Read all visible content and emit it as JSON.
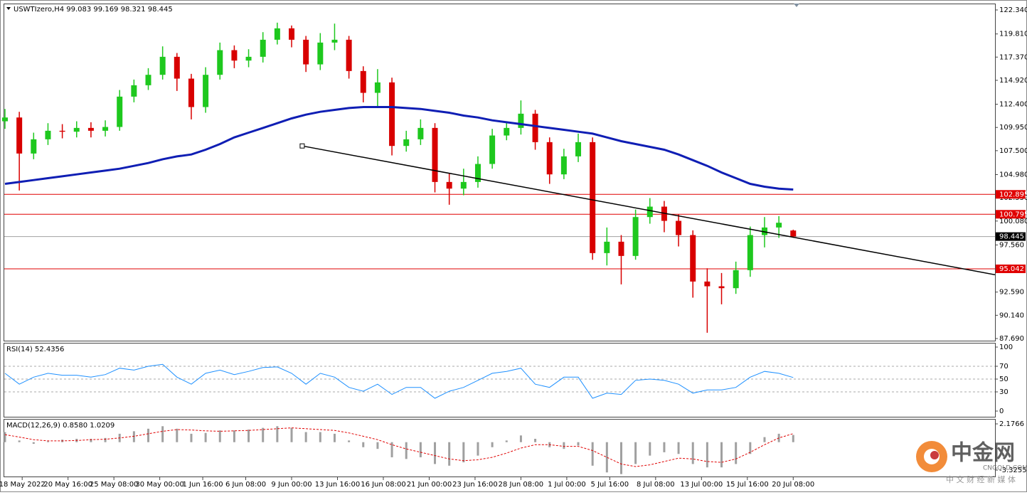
{
  "chart_data": [
    {
      "type": "candlestick",
      "title": "USWTIzero,H4 99.083 99.169 98.321 98.445",
      "x": [
        0,
        5,
        10,
        15,
        20,
        25,
        30,
        35,
        40,
        45,
        50,
        55,
        60,
        65,
        70,
        75,
        80,
        85,
        90,
        95,
        100,
        105,
        110,
        115,
        120,
        125,
        130,
        135,
        140,
        145,
        150,
        155,
        160,
        165,
        170,
        175,
        180,
        185,
        190,
        195,
        200,
        205,
        210,
        215,
        220,
        225,
        230,
        235,
        240,
        245,
        250,
        255,
        260,
        265,
        270,
        275
      ],
      "open": [
        110.6,
        111.0,
        107.2,
        108.7,
        109.6,
        109.5,
        109.9,
        109.6,
        110.0,
        113.2,
        114.4,
        115.5,
        117.4,
        115.1,
        112.1,
        115.5,
        118.1,
        117.0,
        117.4,
        119.2,
        120.4,
        119.2,
        116.6,
        118.9,
        119.2,
        115.9,
        113.6,
        114.7,
        108.0,
        108.7,
        109.9,
        104.2,
        103.5,
        104.2,
        106.1,
        109.1,
        109.9,
        111.4,
        108.4,
        105.0,
        106.9,
        108.4,
        96.7,
        97.9,
        96.4,
        100.5,
        101.6,
        100.1,
        98.6,
        93.7,
        93.2,
        93.0,
        94.9,
        98.6,
        99.4,
        99.083
      ],
      "high": [
        111.9,
        111.6,
        109.4,
        110.4,
        110.3,
        110.6,
        110.5,
        110.7,
        113.9,
        115.0,
        116.2,
        118.5,
        117.8,
        115.6,
        116.3,
        118.9,
        118.6,
        118.2,
        120.0,
        121.0,
        120.7,
        119.6,
        119.9,
        120.9,
        119.6,
        116.4,
        116.1,
        115.2,
        109.6,
        110.8,
        110.4,
        105.1,
        105.6,
        106.9,
        109.8,
        110.6,
        112.8,
        111.8,
        108.9,
        107.7,
        109.3,
        108.9,
        99.4,
        98.6,
        101.3,
        102.5,
        102.2,
        100.8,
        99.1,
        95.1,
        94.6,
        95.8,
        99.5,
        100.5,
        100.6,
        99.169
      ],
      "low": [
        109.8,
        103.3,
        106.6,
        108.1,
        108.8,
        108.9,
        108.9,
        109.0,
        109.6,
        112.6,
        113.9,
        115.0,
        113.8,
        110.8,
        111.5,
        115.0,
        116.2,
        116.3,
        116.8,
        118.7,
        118.4,
        115.8,
        116.0,
        118.1,
        115.1,
        112.6,
        112.0,
        107.0,
        107.4,
        108.1,
        103.1,
        101.8,
        102.8,
        103.6,
        105.6,
        108.6,
        109.2,
        107.6,
        104.0,
        104.5,
        106.3,
        96.0,
        95.4,
        93.4,
        96.0,
        99.8,
        98.9,
        97.4,
        92.0,
        88.3,
        91.3,
        92.4,
        94.2,
        97.3,
        98.3,
        98.321
      ],
      "close": [
        111.0,
        107.2,
        108.7,
        109.6,
        109.5,
        109.9,
        109.6,
        110.0,
        113.2,
        114.4,
        115.5,
        117.4,
        115.1,
        112.1,
        115.5,
        118.1,
        117.0,
        117.4,
        119.2,
        120.4,
        119.2,
        116.6,
        118.9,
        119.2,
        115.9,
        113.6,
        114.7,
        108.0,
        108.7,
        109.9,
        104.2,
        103.5,
        104.2,
        106.1,
        109.1,
        109.9,
        111.4,
        108.4,
        105.0,
        106.9,
        108.4,
        96.7,
        97.9,
        96.4,
        100.5,
        101.6,
        100.1,
        98.6,
        93.7,
        93.2,
        93.0,
        94.9,
        98.6,
        99.4,
        99.9,
        98.445
      ],
      "up_color": "#1ec81e",
      "down_color": "#d80000",
      "ma": {
        "color": "#0f1eb4",
        "values": [
          104.0,
          104.2,
          104.4,
          104.6,
          104.8,
          105.0,
          105.2,
          105.4,
          105.6,
          105.9,
          106.2,
          106.6,
          106.9,
          107.1,
          107.6,
          108.2,
          108.9,
          109.4,
          109.9,
          110.4,
          110.9,
          111.3,
          111.6,
          111.8,
          112.0,
          112.1,
          112.1,
          112.1,
          112.0,
          111.9,
          111.7,
          111.5,
          111.2,
          111.0,
          110.7,
          110.5,
          110.3,
          110.1,
          109.9,
          109.7,
          109.5,
          109.3,
          108.9,
          108.5,
          108.2,
          107.9,
          107.6,
          107.1,
          106.5,
          105.9,
          105.2,
          104.6,
          104.0,
          103.7,
          103.5,
          103.4
        ]
      },
      "trendline": {
        "x": [
          103.7,
          345.4
        ],
        "y": [
          108.0,
          94.42
        ],
        "color": "#000000"
      },
      "levels": [
        {
          "value": 102.895,
          "color": "#e00000",
          "tag_color": "#e00000"
        },
        {
          "value": 100.795,
          "color": "#e00000",
          "tag_color": "#e00000"
        },
        {
          "value": 98.445,
          "color": "#a0a0a0",
          "tag_color": "#000000"
        },
        {
          "value": 95.042,
          "color": "#e00000",
          "tag_color": "#e00000"
        }
      ],
      "xlim": [
        0,
        345.4
      ],
      "xticks": [
        {
          "value": 6,
          "label": "18 May 2022"
        },
        {
          "value": 22,
          "label": "20 May 16:00"
        },
        {
          "value": 38,
          "label": "25 May 08:00"
        },
        {
          "value": 54,
          "label": "30 May 00:00"
        },
        {
          "value": 69,
          "label": "1 Jun 16:00"
        },
        {
          "value": 84,
          "label": "6 Jun 08:00"
        },
        {
          "value": 100,
          "label": "9 Jun 00:00"
        },
        {
          "value": 116,
          "label": "13 Jun 16:00"
        },
        {
          "value": 132,
          "label": "16 Jun 08:00"
        },
        {
          "value": 148,
          "label": "21 Jun 00:00"
        },
        {
          "value": 164,
          "label": "23 Jun 16:00"
        },
        {
          "value": 180,
          "label": "28 Jun 08:00"
        },
        {
          "value": 196,
          "label": "1 Jul 00:00"
        },
        {
          "value": 211,
          "label": "5 Jul 16:00"
        },
        {
          "value": 227,
          "label": "8 Jul 08:00"
        },
        {
          "value": 243,
          "label": "13 Jul 00:00"
        },
        {
          "value": 259,
          "label": "15 Jul 16:00"
        },
        {
          "value": 275,
          "label": "20 Jul 08:00"
        }
      ],
      "ylim": [
        87.69,
        122.34
      ],
      "yticks": [
        {
          "value": 122.34,
          "label": "122.340"
        },
        {
          "value": 119.81,
          "label": "119.810"
        },
        {
          "value": 117.37,
          "label": "117.370"
        },
        {
          "value": 114.92,
          "label": "114.920"
        },
        {
          "value": 112.4,
          "label": "112.400"
        },
        {
          "value": 109.95,
          "label": "109.950"
        },
        {
          "value": 107.5,
          "label": "107.500"
        },
        {
          "value": 104.98,
          "label": "104.980"
        },
        {
          "value": 102.55,
          "label": "102.550"
        },
        {
          "value": 100.08,
          "label": "100.080"
        },
        {
          "value": 97.56,
          "label": "97.560"
        },
        {
          "value": 92.59,
          "label": "92.590"
        },
        {
          "value": 90.14,
          "label": "90.140"
        },
        {
          "value": 87.69,
          "label": "87.690"
        }
      ]
    },
    {
      "type": "line",
      "title": "RSI(14) 52.4356",
      "color": "#1e90ff",
      "values": [
        59,
        42,
        53,
        59,
        56,
        56,
        53,
        57,
        67,
        64,
        70,
        73,
        53,
        42,
        59,
        64,
        57,
        62,
        68,
        69,
        59,
        42,
        59,
        53,
        37,
        31,
        42,
        26,
        37,
        37,
        20,
        31,
        37,
        48,
        59,
        62,
        67,
        42,
        37,
        53,
        53,
        20,
        28,
        26,
        48,
        50,
        48,
        42,
        28,
        33,
        33,
        37,
        53,
        62,
        59,
        52.4356
      ],
      "ylim": [
        0,
        100
      ],
      "yticks": [
        100,
        70,
        50,
        30,
        0
      ],
      "grid": true
    },
    {
      "type": "macd",
      "title": "MACD(12,26,9) 0.8580 1.0209",
      "bar_color": "#a0a0a0",
      "signal_color": "#e00000",
      "values": [
        1.2,
        0.2,
        -0.2,
        0.1,
        0.3,
        0.4,
        0.4,
        0.5,
        1.0,
        1.3,
        1.6,
        1.9,
        1.6,
        1.0,
        1.1,
        1.4,
        1.4,
        1.5,
        1.7,
        1.9,
        1.7,
        1.2,
        1.2,
        1.0,
        0.2,
        -0.6,
        -0.8,
        -1.8,
        -2.0,
        -1.8,
        -2.6,
        -2.8,
        -2.4,
        -1.6,
        -0.6,
        0.2,
        0.8,
        0.4,
        -0.6,
        -0.8,
        -0.4,
        -2.8,
        -3.6,
        -3.8,
        -2.6,
        -1.6,
        -1.2,
        -1.4,
        -2.6,
        -3.0,
        -3.0,
        -2.6,
        -1.4,
        0.6,
        1.0,
        0.858
      ],
      "signal": [
        0.9,
        0.6,
        0.3,
        0.15,
        0.15,
        0.2,
        0.3,
        0.35,
        0.5,
        0.7,
        1.0,
        1.3,
        1.5,
        1.45,
        1.35,
        1.3,
        1.35,
        1.4,
        1.5,
        1.6,
        1.7,
        1.6,
        1.5,
        1.4,
        1.1,
        0.7,
        0.3,
        -0.3,
        -0.8,
        -1.2,
        -1.6,
        -2.0,
        -2.2,
        -2.1,
        -1.8,
        -1.3,
        -0.7,
        -0.3,
        -0.3,
        -0.5,
        -0.5,
        -1.0,
        -1.8,
        -2.6,
        -2.9,
        -2.7,
        -2.3,
        -1.9,
        -2.0,
        -2.3,
        -2.4,
        -2.0,
        -1.2,
        -0.3,
        0.5,
        1.0209
      ],
      "ylim": [
        -3.3255,
        2.1766
      ],
      "yticks": [
        2.1766,
        -3.3255
      ]
    }
  ],
  "watermark": {
    "name": "中金网",
    "site": "CNGOLD.COM",
    "tagline": "中 文 财 经 新 媒 体"
  }
}
